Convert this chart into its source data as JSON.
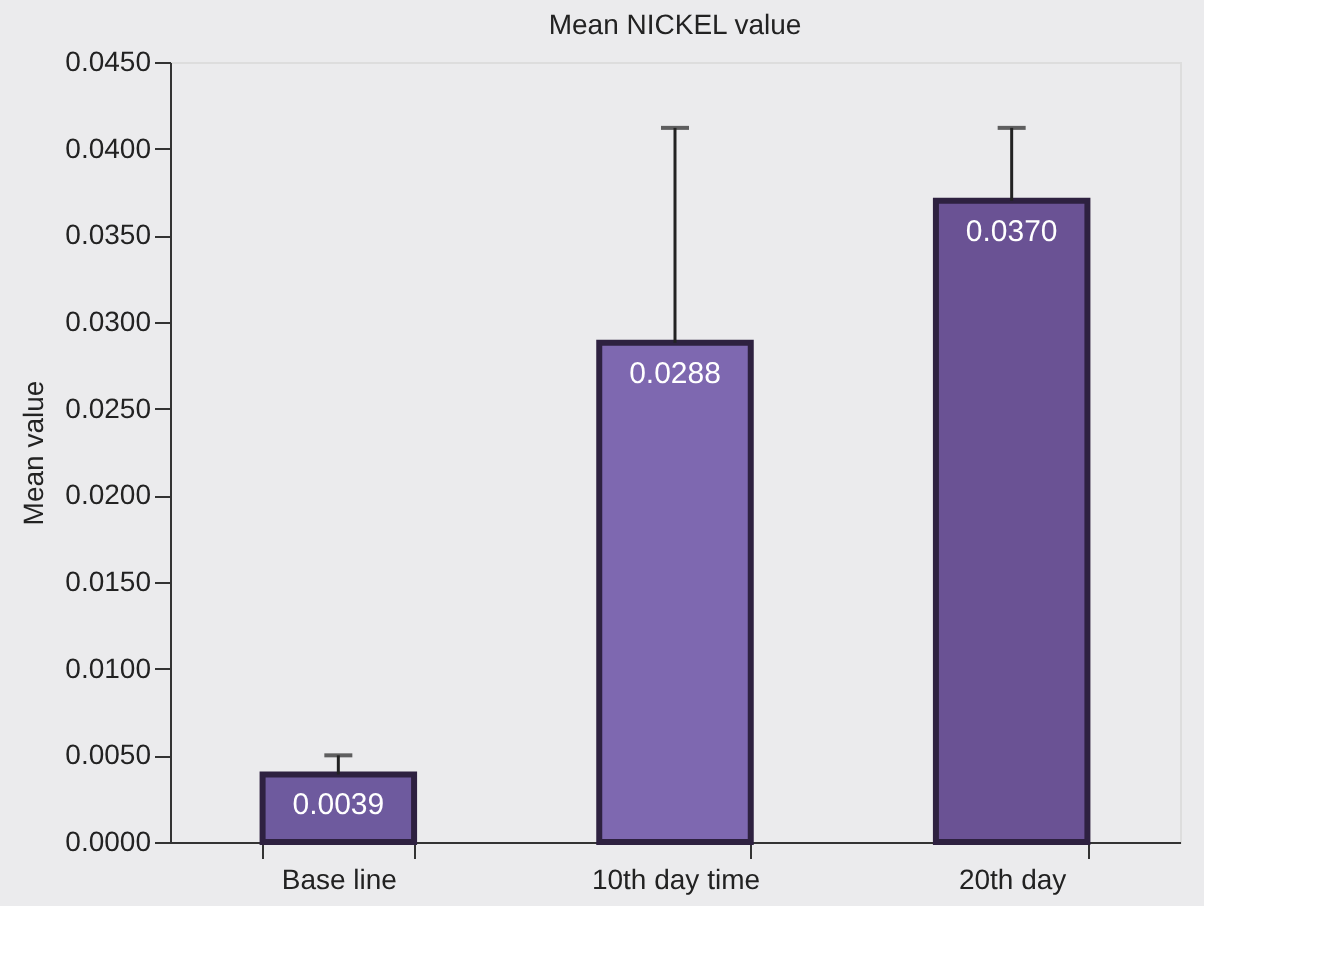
{
  "chart_data": {
    "type": "bar",
    "title": "Mean NICKEL value",
    "ylabel": "Mean value",
    "categories": [
      "Base line",
      "10th day time",
      "20th day"
    ],
    "values": [
      0.0039,
      0.0288,
      0.037
    ],
    "colors": [
      "#6e5a9e",
      "#7e68b0",
      "#6a5294"
    ],
    "errors": [
      [
        0.0039,
        0.005
      ],
      [
        0.0288,
        0.0412
      ],
      [
        0.037,
        0.0412
      ]
    ],
    "ylim": [
      0,
      0.045
    ],
    "yticks": [
      {
        "value": 0,
        "label": "0.0000"
      },
      {
        "value": 0.005,
        "label": "0.0050"
      },
      {
        "value": 0.01,
        "label": "0.0100"
      },
      {
        "value": 0.015,
        "label": "0.0150"
      },
      {
        "value": 0.02,
        "label": "0.0200"
      },
      {
        "value": 0.025,
        "label": "0.0250"
      },
      {
        "value": 0.03,
        "label": "0.0300"
      },
      {
        "value": 0.035,
        "label": "0.0350"
      },
      {
        "value": 0.04,
        "label": "0.0400"
      },
      {
        "value": 0.045,
        "label": "0.0450"
      }
    ],
    "value_labels": [
      "0.0039",
      "0.0288",
      "0.0370"
    ],
    "grid": false
  }
}
